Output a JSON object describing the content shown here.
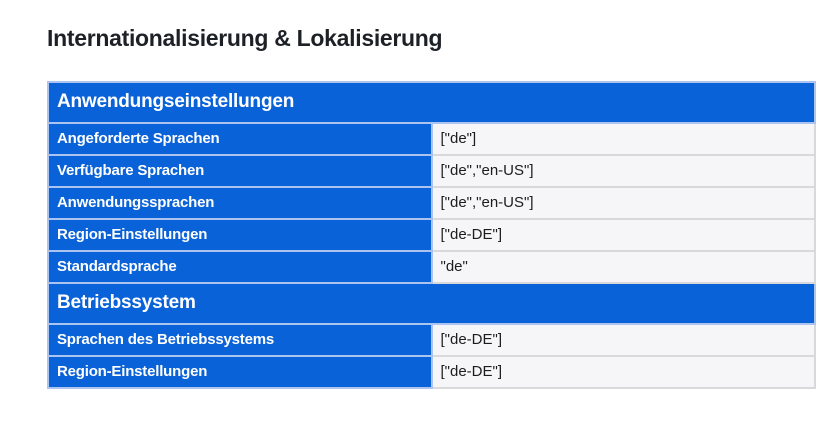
{
  "page": {
    "title": "Internationalisierung & Lokalisierung"
  },
  "colors": {
    "accent_blue": "#0a62d8",
    "label_border_blue": "#abc4f0",
    "value_background": "#f6f6f8",
    "value_border_gray": "#d9d9db",
    "title_text": "#1d2126",
    "value_text": "#1c1c1e",
    "page_background": "#ffffff"
  },
  "table": {
    "sections": [
      {
        "header": "Anwendungseinstellungen",
        "rows": [
          {
            "label": "Angeforderte Sprachen",
            "value": "[\"de\"]"
          },
          {
            "label": "Verfügbare Sprachen",
            "value": "[\"de\",\"en-US\"]"
          },
          {
            "label": "Anwendungssprachen",
            "value": "[\"de\",\"en-US\"]"
          },
          {
            "label": "Region-Einstellungen",
            "value": "[\"de-DE\"]"
          },
          {
            "label": "Standardsprache",
            "value": "\"de\""
          }
        ]
      },
      {
        "header": "Betriebssystem",
        "rows": [
          {
            "label": "Sprachen des Betriebssystems",
            "value": "[\"de-DE\"]"
          },
          {
            "label": "Region-Einstellungen",
            "value": "[\"de-DE\"]"
          }
        ]
      }
    ]
  }
}
